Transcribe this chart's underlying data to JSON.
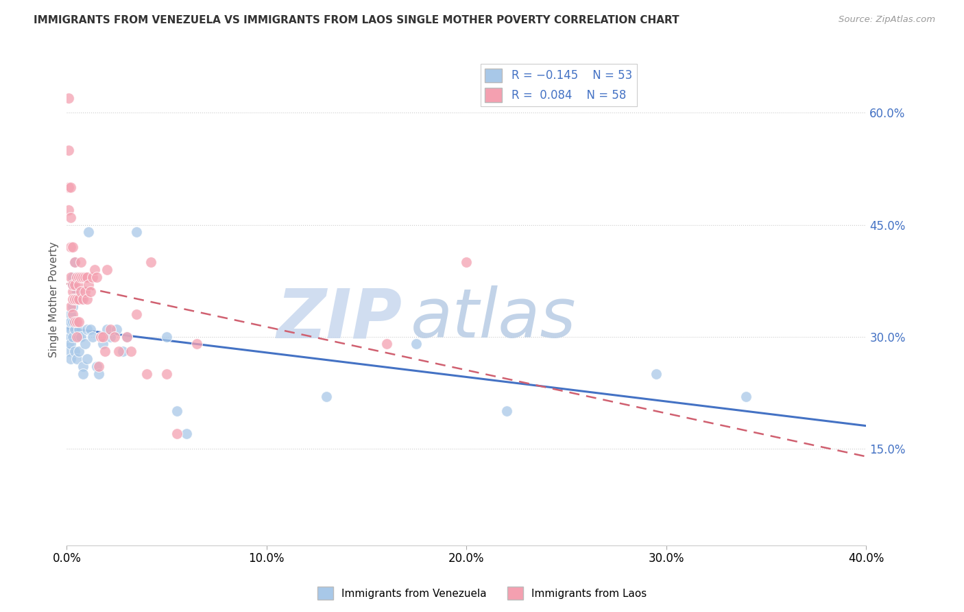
{
  "title": "IMMIGRANTS FROM VENEZUELA VS IMMIGRANTS FROM LAOS SINGLE MOTHER POVERTY CORRELATION CHART",
  "source": "Source: ZipAtlas.com",
  "ylabel": "Single Mother Poverty",
  "y_tick_vals": [
    0.15,
    0.3,
    0.45,
    0.6
  ],
  "xlim": [
    0.0,
    0.4
  ],
  "ylim": [
    0.02,
    0.68
  ],
  "legend_r_venezuela": "R = -0.145",
  "legend_n_venezuela": "N = 53",
  "legend_r_laos": "R =  0.084",
  "legend_n_laos": "N = 58",
  "color_venezuela": "#A8C8E8",
  "color_laos": "#F4A0B0",
  "trendline_color_venezuela": "#4472C4",
  "trendline_color_laos": "#D06070",
  "watermark_zip": "ZIP",
  "watermark_atlas": "atlas",
  "watermark_color_zip": "#C8D8EE",
  "watermark_color_atlas": "#C0D0E8",
  "venezuela_x": [
    0.001,
    0.001,
    0.001,
    0.001,
    0.001,
    0.002,
    0.002,
    0.002,
    0.002,
    0.002,
    0.002,
    0.003,
    0.003,
    0.003,
    0.003,
    0.003,
    0.004,
    0.004,
    0.004,
    0.004,
    0.005,
    0.005,
    0.005,
    0.006,
    0.006,
    0.006,
    0.007,
    0.007,
    0.008,
    0.008,
    0.009,
    0.01,
    0.01,
    0.011,
    0.012,
    0.013,
    0.015,
    0.016,
    0.018,
    0.02,
    0.022,
    0.025,
    0.028,
    0.03,
    0.035,
    0.05,
    0.055,
    0.06,
    0.13,
    0.175,
    0.22,
    0.295,
    0.34
  ],
  "venezuela_y": [
    0.31,
    0.29,
    0.3,
    0.32,
    0.28,
    0.33,
    0.3,
    0.31,
    0.32,
    0.29,
    0.27,
    0.37,
    0.38,
    0.34,
    0.3,
    0.32,
    0.4,
    0.35,
    0.28,
    0.31,
    0.38,
    0.36,
    0.27,
    0.3,
    0.31,
    0.28,
    0.35,
    0.3,
    0.26,
    0.25,
    0.29,
    0.31,
    0.27,
    0.44,
    0.31,
    0.3,
    0.26,
    0.25,
    0.29,
    0.31,
    0.3,
    0.31,
    0.28,
    0.3,
    0.44,
    0.3,
    0.2,
    0.17,
    0.22,
    0.29,
    0.2,
    0.25,
    0.22
  ],
  "laos_x": [
    0.001,
    0.001,
    0.001,
    0.001,
    0.002,
    0.002,
    0.002,
    0.002,
    0.002,
    0.003,
    0.003,
    0.003,
    0.003,
    0.003,
    0.004,
    0.004,
    0.004,
    0.004,
    0.005,
    0.005,
    0.005,
    0.005,
    0.006,
    0.006,
    0.006,
    0.006,
    0.007,
    0.007,
    0.007,
    0.008,
    0.008,
    0.009,
    0.009,
    0.01,
    0.01,
    0.011,
    0.012,
    0.013,
    0.014,
    0.015,
    0.016,
    0.017,
    0.018,
    0.019,
    0.02,
    0.022,
    0.024,
    0.026,
    0.03,
    0.032,
    0.035,
    0.04,
    0.042,
    0.05,
    0.055,
    0.065,
    0.16,
    0.2
  ],
  "laos_y": [
    0.62,
    0.55,
    0.5,
    0.47,
    0.5,
    0.46,
    0.42,
    0.38,
    0.34,
    0.36,
    0.42,
    0.37,
    0.35,
    0.33,
    0.4,
    0.37,
    0.35,
    0.32,
    0.38,
    0.35,
    0.32,
    0.3,
    0.38,
    0.37,
    0.35,
    0.32,
    0.4,
    0.38,
    0.36,
    0.38,
    0.35,
    0.38,
    0.36,
    0.38,
    0.35,
    0.37,
    0.36,
    0.38,
    0.39,
    0.38,
    0.26,
    0.3,
    0.3,
    0.28,
    0.39,
    0.31,
    0.3,
    0.28,
    0.3,
    0.28,
    0.33,
    0.25,
    0.4,
    0.25,
    0.17,
    0.29,
    0.29,
    0.4
  ]
}
